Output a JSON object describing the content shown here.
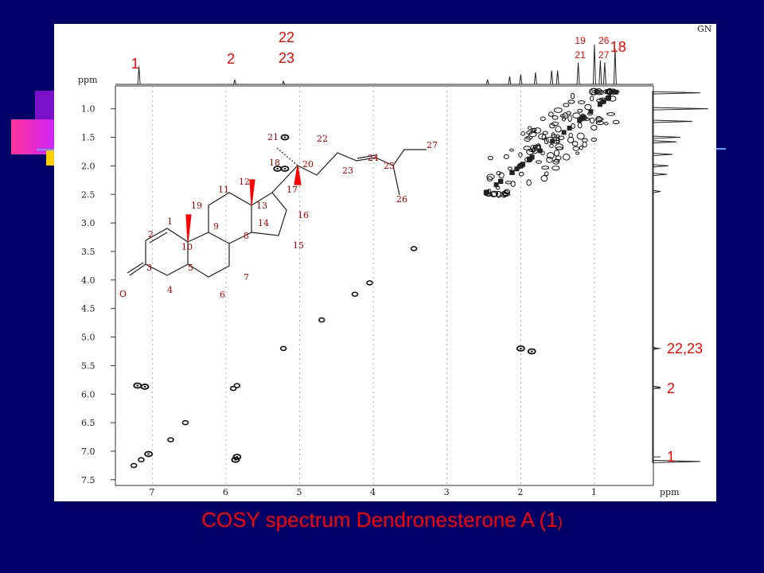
{
  "colors": {
    "background": "#000066",
    "label": "#ff0000",
    "accent_magenta": "#cc22cc",
    "accent_purple": "#7a10c8",
    "accent_yellow": "#ffcc00"
  },
  "caption": {
    "text": "COSY spectrum Dendronesterone A (1",
    "suffix": ")"
  },
  "chart_data": {
    "type": "2D NMR COSY contour plot",
    "title": "",
    "xlabel": "ppm",
    "ylabel": "ppm",
    "xlim": [
      7.5,
      0.2
    ],
    "ylim": [
      0.6,
      7.6
    ],
    "x_ticks": [
      "7",
      "6",
      "5",
      "4",
      "3",
      "2",
      "1",
      "ppm"
    ],
    "y_ticks": [
      "1.0",
      "1.5",
      "2.0",
      "2.5",
      "3.0",
      "3.5",
      "4.0",
      "4.5",
      "5.0",
      "5.5",
      "6.0",
      "6.5",
      "7.0",
      "7.5"
    ],
    "top_axis_label": "ppm",
    "top_corner_text": "GN",
    "top_annotations": [
      {
        "text": "1",
        "ppm": 7.2,
        "size": "large"
      },
      {
        "text": "2",
        "ppm": 5.9,
        "size": "large"
      },
      {
        "text": "22",
        "ppm": 5.2,
        "size": "large"
      },
      {
        "text": "23",
        "ppm": 5.2,
        "size": "large",
        "row": 2
      },
      {
        "text": "19",
        "ppm": 1.2,
        "size": "small"
      },
      {
        "text": "21",
        "ppm": 1.2,
        "size": "small",
        "row": 2
      },
      {
        "text": "26",
        "ppm": 0.88,
        "size": "small"
      },
      {
        "text": "27",
        "ppm": 0.88,
        "size": "small",
        "row": 2
      },
      {
        "text": "18",
        "ppm": 0.7,
        "size": "large"
      }
    ],
    "right_annotations": [
      {
        "text": "22,23",
        "ppm": 5.2
      },
      {
        "text": "2",
        "ppm": 5.9
      },
      {
        "text": "1",
        "ppm": 7.1
      }
    ],
    "top_projection_peaks": [
      {
        "ppm": 7.18,
        "intensity": 0.45
      },
      {
        "ppm": 5.88,
        "intensity": 0.12
      },
      {
        "ppm": 5.22,
        "intensity": 0.08
      },
      {
        "ppm": 2.45,
        "intensity": 0.12
      },
      {
        "ppm": 2.15,
        "intensity": 0.2
      },
      {
        "ppm": 2.0,
        "intensity": 0.25
      },
      {
        "ppm": 1.8,
        "intensity": 0.3
      },
      {
        "ppm": 1.58,
        "intensity": 0.35
      },
      {
        "ppm": 1.5,
        "intensity": 0.35
      },
      {
        "ppm": 1.22,
        "intensity": 0.55
      },
      {
        "ppm": 1.0,
        "intensity": 1.0
      },
      {
        "ppm": 0.92,
        "intensity": 0.6
      },
      {
        "ppm": 0.86,
        "intensity": 0.55
      },
      {
        "ppm": 0.72,
        "intensity": 0.9
      }
    ],
    "diagonal_peaks": [
      [
        7.25,
        7.25
      ],
      [
        7.15,
        7.15
      ],
      [
        6.75,
        6.8
      ],
      [
        6.55,
        6.5
      ],
      [
        5.9,
        5.9
      ],
      [
        5.85,
        5.85
      ],
      [
        5.22,
        5.2
      ],
      [
        4.7,
        4.7
      ],
      [
        4.25,
        4.25
      ],
      [
        4.05,
        4.05
      ],
      [
        3.45,
        3.45
      ]
    ],
    "cross_peaks": [
      [
        7.2,
        5.85
      ],
      [
        7.1,
        5.87
      ],
      [
        5.87,
        7.15
      ],
      [
        5.85,
        7.1
      ],
      [
        5.2,
        1.5
      ],
      [
        5.2,
        2.05
      ],
      [
        5.3,
        2.05
      ],
      [
        1.85,
        5.25
      ],
      [
        2.0,
        5.2
      ],
      [
        7.05,
        7.05
      ]
    ],
    "aliphatic_cluster_ppm": [
      0.7,
      2.5
    ],
    "structure_atom_labels": [
      "1",
      "2",
      "3",
      "4",
      "5",
      "6",
      "7",
      "8",
      "9",
      "10",
      "11",
      "12",
      "13",
      "14",
      "15",
      "16",
      "17",
      "18",
      "19",
      "20",
      "21",
      "22",
      "23",
      "24",
      "25",
      "26",
      "27",
      "O"
    ]
  }
}
